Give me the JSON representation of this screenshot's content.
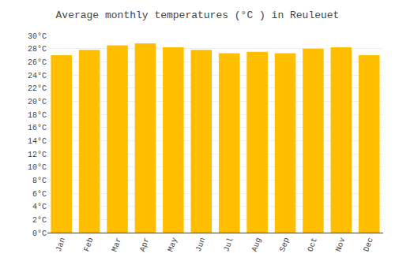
{
  "chart_data": {
    "type": "bar",
    "title": "Average monthly temperatures (°C ) in Reuleuet",
    "categories": [
      "Jan",
      "Feb",
      "Mar",
      "Apr",
      "May",
      "Jun",
      "Jul",
      "Aug",
      "Sep",
      "Oct",
      "Nov",
      "Dec"
    ],
    "values": [
      27.0,
      27.8,
      28.5,
      28.8,
      28.2,
      27.8,
      27.3,
      27.5,
      27.3,
      28.0,
      28.2,
      27.0
    ],
    "color": "#FFBE00",
    "ylim": [
      0,
      30
    ],
    "yticks": [
      {
        "value": 0,
        "label": "0°C"
      },
      {
        "value": 2,
        "label": "2°C"
      },
      {
        "value": 4,
        "label": "4°C"
      },
      {
        "value": 6,
        "label": "6°C"
      },
      {
        "value": 8,
        "label": "8°C"
      },
      {
        "value": 10,
        "label": "10°C"
      },
      {
        "value": 12,
        "label": "12°C"
      },
      {
        "value": 14,
        "label": "14°C"
      },
      {
        "value": 16,
        "label": "16°C"
      },
      {
        "value": 18,
        "label": "18°C"
      },
      {
        "value": 20,
        "label": "20°C"
      },
      {
        "value": 22,
        "label": "22°C"
      },
      {
        "value": 24,
        "label": "24°C"
      },
      {
        "value": 26,
        "label": "26°C"
      },
      {
        "value": 28,
        "label": "28°C"
      },
      {
        "value": 30,
        "label": "30°C"
      }
    ],
    "grid": true
  }
}
